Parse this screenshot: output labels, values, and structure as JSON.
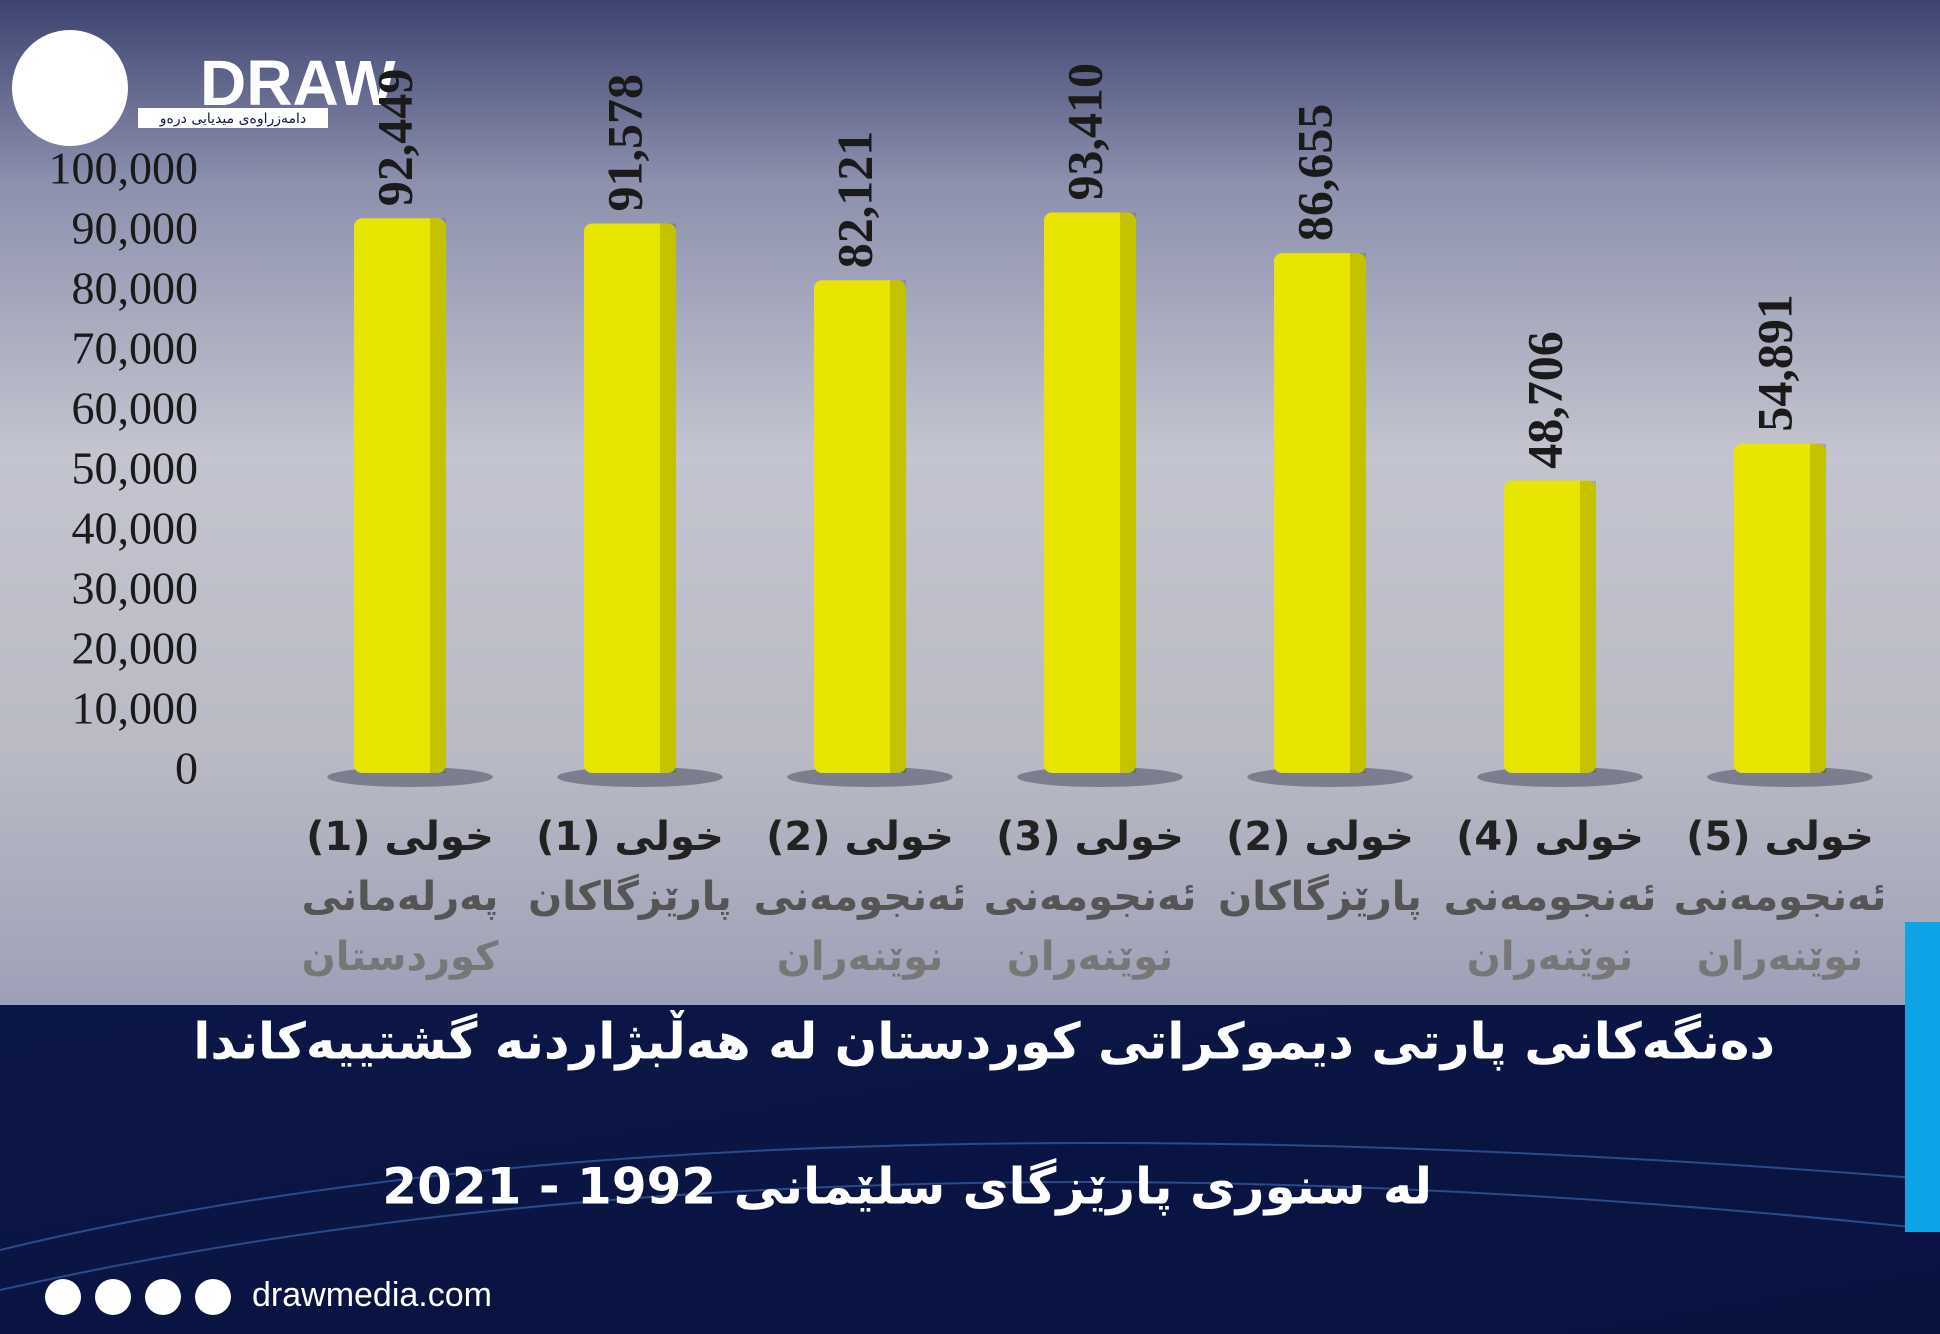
{
  "brand": {
    "logo": "DRAW",
    "tagline": "دامەزراوەی میدیایی درەو",
    "website": "drawmedia.com"
  },
  "chart_data": {
    "type": "bar",
    "title": "دەنگەکانی پارتی دیموکراتی کوردستان لە هەڵبژاردنە گشتییەکاندا",
    "subtitle": "لە سنوری پارێزگای سلێمانی 1992 - 2021",
    "categories": [
      [
        "خولی (1)",
        "پەرلەمانی",
        "کوردستان"
      ],
      [
        "خولی (1)",
        "پارێزگاکان"
      ],
      [
        "خولی (2)",
        "ئەنجومەنی",
        "نوێنەران"
      ],
      [
        "خولی (3)",
        "ئەنجومەنی",
        "نوێنەران"
      ],
      [
        "خولی (2)",
        "پارێزگاکان"
      ],
      [
        "خولی (4)",
        "ئەنجومەنی",
        "نوێنەران"
      ],
      [
        "خولی (5)",
        "ئەنجومەنی",
        "نوێنەران"
      ]
    ],
    "values": [
      92449,
      91578,
      82121,
      93410,
      86655,
      48706,
      54891
    ],
    "value_labels": [
      "92,449",
      "91,578",
      "82,121",
      "93,410",
      "86,655",
      "48,706",
      "54,891"
    ],
    "color": "#e8e600",
    "ylim": [
      0,
      100000
    ],
    "yticks": [
      0,
      {
        "value": 10000,
        "label": "10,000"
      },
      {
        "value": 20000,
        "label": "20,000"
      },
      {
        "value": 30000,
        "label": "30,000"
      },
      {
        "value": 40000,
        "label": "40,000"
      },
      {
        "value": 50000,
        "label": "50,000"
      },
      {
        "value": 60000,
        "label": "60,000"
      },
      {
        "value": 70000,
        "label": "70,000"
      },
      {
        "value": 80000,
        "label": "80,000"
      },
      {
        "value": 90000,
        "label": "90,000"
      },
      {
        "value": 100000,
        "label": "100,000"
      }
    ],
    "grid": false
  }
}
